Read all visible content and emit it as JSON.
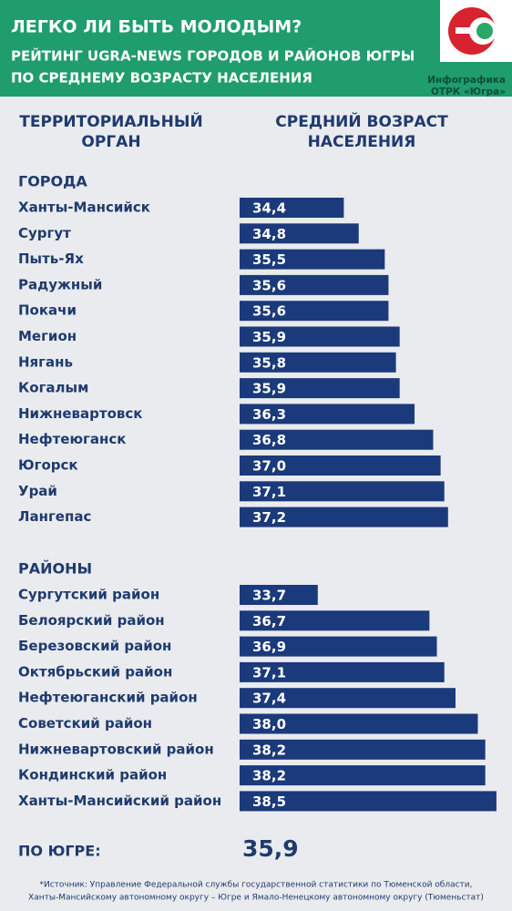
{
  "header": {
    "title": "ЛЕГКО ЛИ БЫТЬ МОЛОДЫМ?",
    "subtitle_lines": [
      "РЕЙТИНГ UGRA-NEWS ГОРОДОВ И РАЙОНОВ ЮГРЫ",
      "ПО СРЕДНЕМУ ВОЗРАСТУ НАСЕЛЕНИЯ"
    ],
    "credit_lines": [
      "Инфографика",
      "ОТРК «Югра»"
    ]
  },
  "chart_data": {
    "type": "bar",
    "orientation": "horizontal",
    "color": "#1b3a7b",
    "xlim": [
      31.6,
      38.6
    ],
    "column_headers": [
      [
        "ТЕРРИТОРИАЛЬНЫЙ",
        "ОРГАН"
      ],
      [
        "СРЕДНИЙ ВОЗРАСТ",
        "НАСЕЛЕНИЯ"
      ]
    ],
    "groups": [
      {
        "name": "ГОРОДА",
        "categories": [
          "Ханты-Мансийск",
          "Сургут",
          "Пыть-Ях",
          "Радужный",
          "Покачи",
          "Мегион",
          "Нягань",
          "Когалым",
          "Нижневартовск",
          "Нефтеюганск",
          "Югорск",
          "Урай",
          "Лангепас"
        ],
        "values": [
          34.4,
          34.8,
          35.5,
          35.6,
          35.6,
          35.9,
          35.8,
          35.9,
          36.3,
          36.8,
          37.0,
          37.1,
          37.2
        ],
        "value_labels": [
          "34,4",
          "34,8",
          "35,5",
          "35,6",
          "35,6",
          "35,9",
          "35,8",
          "35,9",
          "36,3",
          "36,8",
          "37,0",
          "37,1",
          "37,2"
        ]
      },
      {
        "name": "РАЙОНЫ",
        "categories": [
          "Сургутский район",
          "Белоярский район",
          "Березовский район",
          "Октябрьский район",
          "Нефтеюганский район",
          "Советский район",
          "Нижневартовский район",
          "Кондинский район",
          "Ханты-Мансийский район"
        ],
        "values": [
          33.7,
          36.7,
          36.9,
          37.1,
          37.4,
          38.0,
          38.2,
          38.2,
          38.5
        ],
        "value_labels": [
          "33,7",
          "36,7",
          "36,9",
          "37,1",
          "37,4",
          "38,0",
          "38,2",
          "38,2",
          "38,5"
        ]
      }
    ]
  },
  "summary": {
    "label": "ПО ЮГРЕ:",
    "value": 35.9,
    "value_label": "35,9"
  },
  "source_lines": [
    "*Источник:  Управление Федеральной службы государственной статистики по Тюменской области,",
    "Ханты-Мансийскому автономному округу – Югре и Ямало-Ненецкому автономному округу (Тюменьстат)"
  ]
}
